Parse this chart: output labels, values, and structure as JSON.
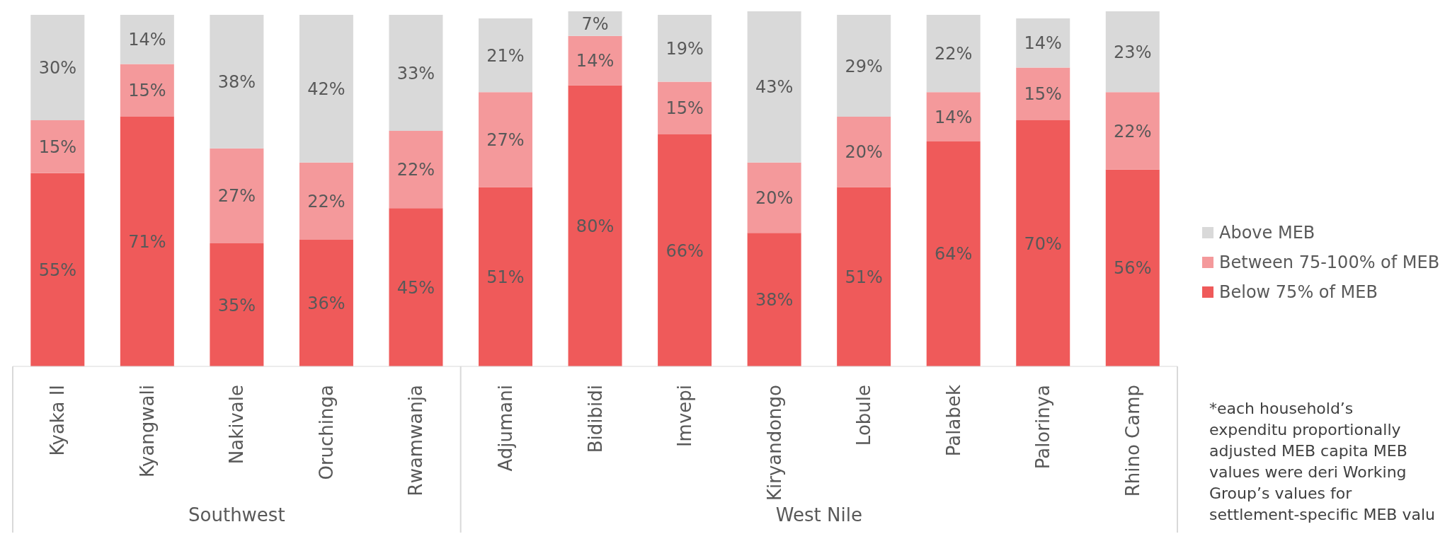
{
  "chart_data": {
    "type": "bar",
    "stacked": true,
    "legend": "right",
    "categories": [
      "Kyaka II",
      "Kyangwali",
      "Nakivale",
      "Oruchinga",
      "Rwamwanja",
      "Adjumani",
      "Bidibidi",
      "Imvepi",
      "Kiryandongo",
      "Lobule",
      "Palabek",
      "Palorinya",
      "Rhino Camp"
    ],
    "series": [
      {
        "name": "Below 75% of MEB",
        "color": "#ef5a5a",
        "values": [
          55,
          71,
          35,
          36,
          45,
          51,
          80,
          66,
          38,
          51,
          64,
          70,
          56
        ],
        "value_labels": [
          "55%",
          "71%",
          "35%",
          "36%",
          "45%",
          "51%",
          "80%",
          "66%",
          "38%",
          "51%",
          "64%",
          "70%",
          "56%"
        ]
      },
      {
        "name": "Between 75-100% of MEB",
        "color": "#f4999b",
        "values": [
          15,
          15,
          27,
          22,
          22,
          27,
          14,
          15,
          20,
          20,
          14,
          15,
          22
        ],
        "value_labels": [
          "15%",
          "15%",
          "27%",
          "22%",
          "22%",
          "27%",
          "14%",
          "15%",
          "20%",
          "20%",
          "14%",
          "15%",
          "22%"
        ]
      },
      {
        "name": "Above MEB",
        "color": "#d9d9d9",
        "values": [
          30,
          14,
          38,
          42,
          33,
          21,
          7,
          19,
          43,
          29,
          22,
          14,
          23
        ],
        "value_labels": [
          "30%",
          "14%",
          "38%",
          "42%",
          "33%",
          "21%",
          "7%",
          "19%",
          "43%",
          "29%",
          "22%",
          "14%",
          "23%"
        ]
      }
    ],
    "annotations": [
      "Southwest",
      "West Nile",
      "*each household’s expenditu proportionally adjusted MEB capita MEB values were deri Working Group’s values for settlement-specific MEB valu"
    ]
  }
}
